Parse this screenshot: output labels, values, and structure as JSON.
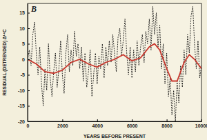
{
  "chart_data": {
    "type": "line",
    "title": "B",
    "x_label": "YEARS BEFORE PRESENT",
    "y_label": "RESIDUAL (DETRENDED) Δ¹⁴C",
    "xlim": [
      0,
      10000
    ],
    "xticks": [
      0,
      2000,
      4000,
      6000,
      8000,
      10000
    ],
    "ylim": [
      -20,
      18
    ],
    "yticks": [
      -20,
      -15,
      -10,
      -5,
      0,
      5,
      10,
      15
    ],
    "grid": false,
    "series": [
      {
        "color": "#000000",
        "line_style": "dashed",
        "x": [
          0,
          100,
          200,
          300,
          400,
          500,
          600,
          700,
          800,
          900,
          1000,
          1100,
          1200,
          1300,
          1400,
          1500,
          1600,
          1700,
          1800,
          1900,
          2000,
          2100,
          2200,
          2300,
          2400,
          2500,
          2600,
          2700,
          2800,
          2900,
          3000,
          3100,
          3200,
          3300,
          3400,
          3500,
          3600,
          3700,
          3800,
          3900,
          4000,
          4100,
          4200,
          4300,
          4400,
          4500,
          4600,
          4700,
          4800,
          4900,
          5000,
          5100,
          5200,
          5300,
          5400,
          5500,
          5600,
          5700,
          5800,
          5900,
          6000,
          6100,
          6200,
          6300,
          6400,
          6500,
          6600,
          6700,
          6800,
          6900,
          7000,
          7100,
          7200,
          7300,
          7400,
          7500,
          7600,
          7700,
          7800,
          7900,
          8000,
          8100,
          8200,
          8300,
          8400,
          8500,
          8600,
          8700,
          8800,
          8900,
          9000,
          9100,
          9200,
          9300,
          9400,
          9500,
          9600,
          9700,
          9800,
          9900,
          10000
        ],
        "values": [
          0,
          3,
          -2,
          8,
          12,
          2,
          -5,
          4,
          -8,
          -15,
          -3,
          -10,
          5,
          -6,
          -12,
          -4,
          2,
          -9,
          -3,
          6,
          -5,
          -11,
          2,
          8,
          -4,
          3,
          -2,
          9,
          1,
          5,
          -3,
          4,
          -7,
          2,
          -9,
          -4,
          3,
          -12,
          -5,
          2,
          -8,
          1,
          -3,
          5,
          -6,
          4,
          -2,
          6,
          -1,
          8,
          2,
          -4,
          7,
          10,
          1,
          6,
          13,
          2,
          -5,
          4,
          -6,
          3,
          -4,
          6,
          -2,
          4,
          8,
          -1,
          9,
          5,
          13,
          3,
          17,
          8,
          15,
          4,
          11,
          -3,
          5,
          -8,
          2,
          -12,
          -6,
          -18,
          -10,
          -20,
          -7,
          -14,
          -2,
          -9,
          3,
          -5,
          8,
          2,
          14,
          17,
          5,
          -3,
          6,
          -6,
          -2
        ]
      },
      {
        "color": "#c8372d",
        "line_style": "solid",
        "x": [
          0,
          500,
          1000,
          1500,
          2000,
          2500,
          3000,
          3500,
          4000,
          4500,
          5000,
          5500,
          6000,
          6500,
          7000,
          7300,
          7600,
          8000,
          8300,
          8600,
          9000,
          9300,
          9600,
          10000
        ],
        "values": [
          0,
          -1.5,
          -4,
          -4.5,
          -3.5,
          -1,
          0,
          -1.5,
          -2.5,
          -1,
          0,
          1.5,
          -0.5,
          0.5,
          4,
          5,
          3,
          -3,
          -7,
          -7,
          -1,
          1.5,
          0,
          -3
        ]
      }
    ]
  }
}
